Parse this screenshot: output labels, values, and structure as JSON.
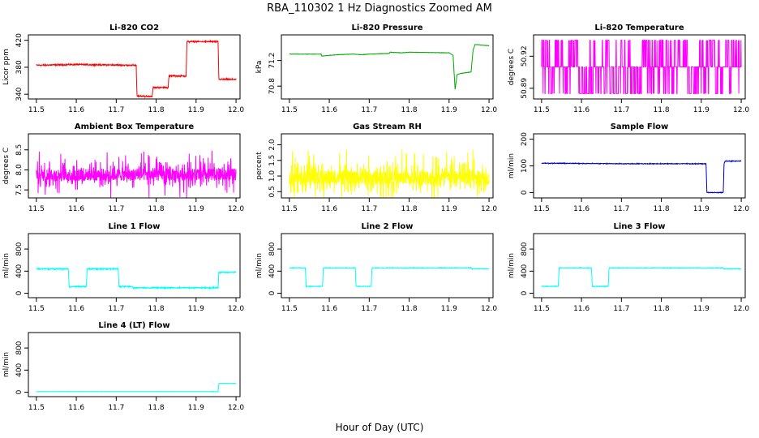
{
  "figure": {
    "title": "RBA_110302  1 Hz Diagnostics Zoomed AM",
    "xlabel": "Hour of Day (UTC)"
  },
  "chart_data": [
    {
      "id": "li820-co2",
      "type": "line",
      "title": "Li-820 CO2",
      "ylabel": "Licor ppm",
      "color": "#ff0000",
      "xlim": [
        11.48,
        12.01
      ],
      "ylim": [
        333,
        428
      ],
      "xticks": [
        "11.5",
        "11.6",
        "11.7",
        "11.8",
        "11.9",
        "12.0"
      ],
      "xtick_values": [
        11.5,
        11.6,
        11.7,
        11.8,
        11.9,
        12.0
      ],
      "yticks": [
        "340",
        "380",
        "420"
      ],
      "ytick_values": [
        340,
        380,
        420
      ],
      "noise": 1.5,
      "noise_mode": "gauss",
      "x": [
        11.5,
        11.6,
        11.75,
        11.752,
        11.79,
        11.792,
        11.83,
        11.832,
        11.875,
        11.877,
        11.955,
        11.957,
        12.0
      ],
      "y": [
        383,
        384,
        383,
        337,
        337,
        350,
        350,
        367,
        367,
        418,
        418,
        362,
        362
      ]
    },
    {
      "id": "li820-pressure",
      "type": "line",
      "title": "Li-820 Pressure",
      "ylabel": "kPa",
      "color": "#00aa00",
      "xlim": [
        11.48,
        12.01
      ],
      "ylim": [
        70.6,
        71.6
      ],
      "xticks": [
        "11.5",
        "11.6",
        "11.7",
        "11.8",
        "11.9",
        "12.0"
      ],
      "xtick_values": [
        11.5,
        11.6,
        11.7,
        11.8,
        11.9,
        12.0
      ],
      "yticks": [
        "70.8",
        "71.2"
      ],
      "ytick_values": [
        70.8,
        71.2
      ],
      "noise": 0.004,
      "noise_mode": "gauss",
      "x": [
        11.5,
        11.58,
        11.581,
        11.62,
        11.66,
        11.68,
        11.7,
        11.75,
        11.752,
        11.78,
        11.8,
        11.9,
        11.91,
        11.915,
        11.92,
        11.93,
        11.955,
        11.96,
        11.965,
        12.0
      ],
      "y": [
        71.3,
        71.3,
        71.27,
        71.29,
        71.3,
        71.29,
        71.3,
        71.31,
        71.33,
        71.32,
        71.33,
        71.32,
        71.28,
        70.75,
        70.98,
        71.0,
        71.02,
        71.36,
        71.45,
        71.43
      ]
    },
    {
      "id": "li820-temperature",
      "type": "line",
      "title": "Li-820 Temperature",
      "ylabel": "degrees C",
      "color": "#ff00ff",
      "xlim": [
        11.48,
        12.01
      ],
      "ylim": [
        50.88,
        50.94
      ],
      "xticks": [
        "11.5",
        "11.6",
        "11.7",
        "11.8",
        "11.9",
        "12.0"
      ],
      "xtick_values": [
        11.5,
        11.6,
        11.7,
        11.8,
        11.9,
        12.0
      ],
      "yticks": [
        "50.89",
        "50.92"
      ],
      "ytick_values": [
        50.89,
        50.92
      ],
      "digital_values": [
        50.885,
        50.91,
        50.935
      ],
      "noise_mode": "digital",
      "x": [
        11.5,
        12.0
      ],
      "y": [
        50.91,
        50.91
      ]
    },
    {
      "id": "ambient-box-temperature",
      "type": "line",
      "title": "Ambient Box Temperature",
      "ylabel": "degrees C",
      "color": "#ff00ff",
      "xlim": [
        11.48,
        12.01
      ],
      "ylim": [
        7.3,
        8.9
      ],
      "xticks": [
        "11.5",
        "11.6",
        "11.7",
        "11.8",
        "11.9",
        "12.0"
      ],
      "xtick_values": [
        11.5,
        11.6,
        11.7,
        11.8,
        11.9,
        12.0
      ],
      "yticks": [
        "7.5",
        "8.0",
        "8.5"
      ],
      "ytick_values": [
        7.5,
        8.0,
        8.5
      ],
      "noise": 0.28,
      "noise_mode": "spiky",
      "x": [
        11.5,
        12.0
      ],
      "y": [
        7.88,
        7.88
      ]
    },
    {
      "id": "gas-stream-rh",
      "type": "line",
      "title": "Gas Stream RH",
      "ylabel": "percent",
      "color": "#ffff00",
      "xlim": [
        11.48,
        12.01
      ],
      "ylim": [
        0.3,
        2.35
      ],
      "xticks": [
        "11.5",
        "11.6",
        "11.7",
        "11.8",
        "11.9",
        "12.0"
      ],
      "xtick_values": [
        11.5,
        11.6,
        11.7,
        11.8,
        11.9,
        12.0
      ],
      "yticks": [
        "0.5",
        "1.0",
        "1.5",
        "2.0"
      ],
      "ytick_values": [
        0.5,
        1.0,
        1.5,
        2.0
      ],
      "noise": 0.42,
      "noise_mode": "spiky",
      "x": [
        11.5,
        12.0
      ],
      "y": [
        0.95,
        0.95
      ]
    },
    {
      "id": "sample-flow",
      "type": "line",
      "title": "Sample Flow",
      "ylabel": "ml/min",
      "color": "#0000cc",
      "xlim": [
        11.48,
        12.01
      ],
      "ylim": [
        -20,
        220
      ],
      "xticks": [
        "11.5",
        "11.6",
        "11.7",
        "11.8",
        "11.9",
        "12.0"
      ],
      "xtick_values": [
        11.5,
        11.6,
        11.7,
        11.8,
        11.9,
        12.0
      ],
      "yticks": [
        "0",
        "100",
        "200"
      ],
      "ytick_values": [
        0,
        100,
        200
      ],
      "noise": 2.0,
      "noise_mode": "gauss",
      "x": [
        11.5,
        11.7,
        11.9,
        11.912,
        11.914,
        11.955,
        11.957,
        11.96,
        12.0
      ],
      "y": [
        110,
        108,
        108,
        108,
        0,
        0,
        108,
        118,
        118
      ]
    },
    {
      "id": "line1-flow",
      "type": "line",
      "title": "Line 1 Flow",
      "ylabel": "ml/min",
      "color": "#00ffff",
      "xlim": [
        11.48,
        12.01
      ],
      "ylim": [
        -80,
        1080
      ],
      "xticks": [
        "11.5",
        "11.6",
        "11.7",
        "11.8",
        "11.9",
        "12.0"
      ],
      "xtick_values": [
        11.5,
        11.6,
        11.7,
        11.8,
        11.9,
        12.0
      ],
      "yticks": [
        "0",
        "400",
        "800"
      ],
      "ytick_values": [
        0,
        400,
        800
      ],
      "noise": 18,
      "noise_mode": "gauss",
      "x": [
        11.5,
        11.58,
        11.582,
        11.625,
        11.627,
        11.705,
        11.707,
        11.74,
        11.742,
        11.955,
        11.957,
        12.0
      ],
      "y": [
        440,
        440,
        120,
        120,
        440,
        440,
        120,
        120,
        100,
        100,
        380,
        380
      ]
    },
    {
      "id": "line2-flow",
      "type": "line",
      "title": "Line 2 Flow",
      "ylabel": "ml/min",
      "color": "#00ffff",
      "xlim": [
        11.48,
        12.01
      ],
      "ylim": [
        -80,
        1080
      ],
      "xticks": [
        "11.5",
        "11.6",
        "11.7",
        "11.8",
        "11.9",
        "12.0"
      ],
      "xtick_values": [
        11.5,
        11.6,
        11.7,
        11.8,
        11.9,
        12.0
      ],
      "yticks": [
        "0",
        "400",
        "800"
      ],
      "ytick_values": [
        0,
        400,
        800
      ],
      "noise": 8,
      "noise_mode": "gauss",
      "x": [
        11.5,
        11.54,
        11.542,
        11.583,
        11.585,
        11.665,
        11.667,
        11.705,
        11.707,
        11.955,
        11.957,
        12.0
      ],
      "y": [
        460,
        460,
        125,
        125,
        460,
        460,
        125,
        125,
        460,
        460,
        440,
        440
      ]
    },
    {
      "id": "line3-flow",
      "type": "line",
      "title": "Line 3 Flow",
      "ylabel": "ml/min",
      "color": "#00ffff",
      "xlim": [
        11.48,
        12.01
      ],
      "ylim": [
        -80,
        1080
      ],
      "xticks": [
        "11.5",
        "11.6",
        "11.7",
        "11.8",
        "11.9",
        "12.0"
      ],
      "xtick_values": [
        11.5,
        11.6,
        11.7,
        11.8,
        11.9,
        12.0
      ],
      "yticks": [
        "0",
        "400",
        "800"
      ],
      "ytick_values": [
        0,
        400,
        800
      ],
      "noise": 8,
      "noise_mode": "gauss",
      "x": [
        11.5,
        11.542,
        11.544,
        11.625,
        11.627,
        11.667,
        11.669,
        11.955,
        11.957,
        12.0
      ],
      "y": [
        125,
        125,
        460,
        460,
        125,
        125,
        460,
        460,
        440,
        440
      ]
    },
    {
      "id": "line4-lt-flow",
      "type": "line",
      "title": "Line 4 (LT) Flow",
      "ylabel": "ml/min",
      "color": "#00ffff",
      "xlim": [
        11.48,
        12.01
      ],
      "ylim": [
        -80,
        1080
      ],
      "xticks": [
        "11.5",
        "11.6",
        "11.7",
        "11.8",
        "11.9",
        "12.0"
      ],
      "xtick_values": [
        11.5,
        11.6,
        11.7,
        11.8,
        11.9,
        12.0
      ],
      "yticks": [
        "0",
        "400",
        "800"
      ],
      "ytick_values": [
        0,
        400,
        800
      ],
      "noise": 3,
      "noise_mode": "gauss",
      "x": [
        11.5,
        11.955,
        11.957,
        12.0
      ],
      "y": [
        10,
        10,
        160,
        160
      ]
    }
  ]
}
